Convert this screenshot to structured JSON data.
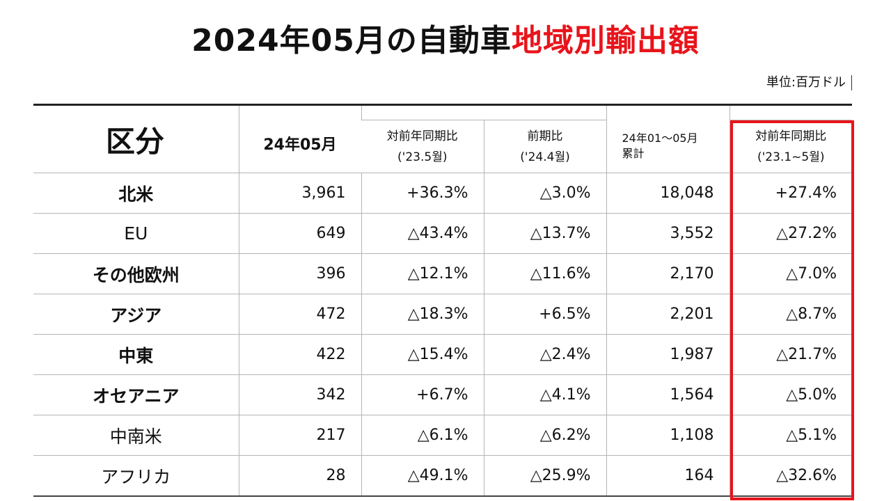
{
  "title": {
    "prefix": "2024年05月の自動車",
    "highlight": "地域別輸出額"
  },
  "unit_label": "単位:百万ドル",
  "colors": {
    "title_highlight": "#e8141b",
    "highlight_box": "#e8141b"
  },
  "table": {
    "headers": {
      "category": "区分",
      "month": "24年05月",
      "yoy": "対前年同期比",
      "yoy_sub": "('23.5월)",
      "mom": "前期比",
      "mom_sub": "('24.4월)",
      "cumulative_line1": "24年01～05月",
      "cumulative_line2": "累計",
      "cum_yoy": "対前年同期比",
      "cum_yoy_sub": "('23.1~5월)"
    },
    "rows": [
      {
        "region": "北米",
        "month": "3,961",
        "yoy": "+36.3%",
        "mom": "△3.0%",
        "cumulative": "18,048",
        "cum_yoy": "+27.4%"
      },
      {
        "region": "EU",
        "month": "649",
        "yoy": "△43.4%",
        "mom": "△13.7%",
        "cumulative": "3,552",
        "cum_yoy": "△27.2%"
      },
      {
        "region": "その他欧州",
        "month": "396",
        "yoy": "△12.1%",
        "mom": "△11.6%",
        "cumulative": "2,170",
        "cum_yoy": "△7.0%"
      },
      {
        "region": "アジア",
        "month": "472",
        "yoy": "△18.3%",
        "mom": "+6.5%",
        "cumulative": "2,201",
        "cum_yoy": "△8.7%"
      },
      {
        "region": "中東",
        "month": "422",
        "yoy": "△15.4%",
        "mom": "△2.4%",
        "cumulative": "1,987",
        "cum_yoy": "△21.7%"
      },
      {
        "region": "オセアニア",
        "month": "342",
        "yoy": "+6.7%",
        "mom": "△4.1%",
        "cumulative": "1,564",
        "cum_yoy": "△5.0%"
      },
      {
        "region": "中南米",
        "month": "217",
        "yoy": "△6.1%",
        "mom": "△6.2%",
        "cumulative": "1,108",
        "cum_yoy": "△5.1%"
      },
      {
        "region": "アフリカ",
        "month": "28",
        "yoy": "△49.1%",
        "mom": "△25.9%",
        "cumulative": "164",
        "cum_yoy": "△32.6%"
      }
    ]
  }
}
